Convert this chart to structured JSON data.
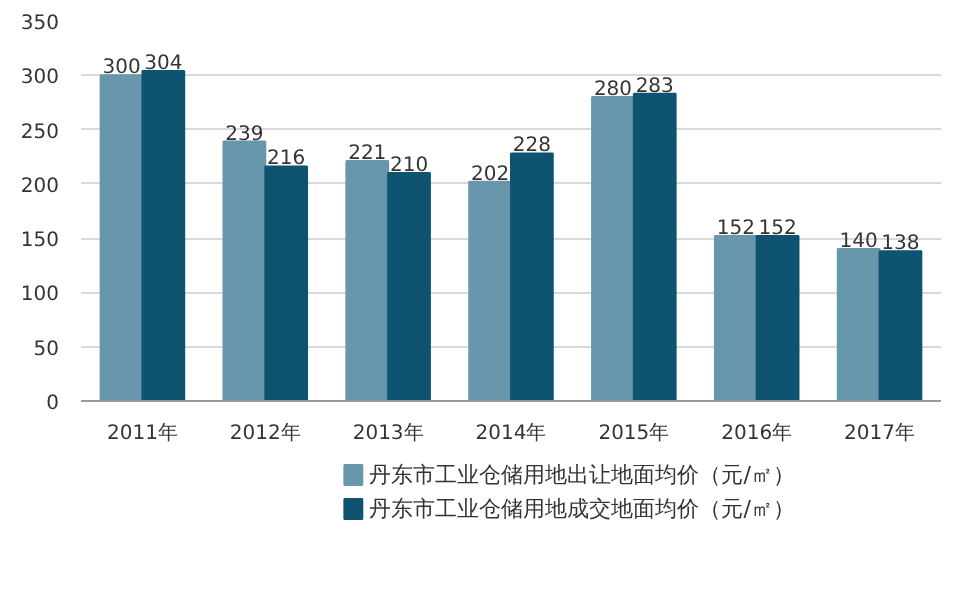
{
  "chart_data": {
    "type": "bar",
    "categories": [
      "2011年",
      "2012年",
      "2013年",
      "2014年",
      "2015年",
      "2016年",
      "2017年"
    ],
    "series": [
      {
        "name": "丹东市工业仓储用地出让地面均价（元/㎡）",
        "color": "#6897ad",
        "values": [
          300,
          239,
          221,
          202,
          280,
          152,
          140
        ]
      },
      {
        "name": "丹东市工业仓储用地成交地面均价（元/㎡）",
        "color": "#0e5470",
        "values": [
          304,
          216,
          210,
          228,
          283,
          152,
          138
        ]
      }
    ],
    "ylim": [
      0,
      350
    ],
    "yticks": [
      0,
      50,
      100,
      150,
      200,
      250,
      300,
      350
    ],
    "grid": "y",
    "legend": "bottom",
    "data_labels": true
  }
}
